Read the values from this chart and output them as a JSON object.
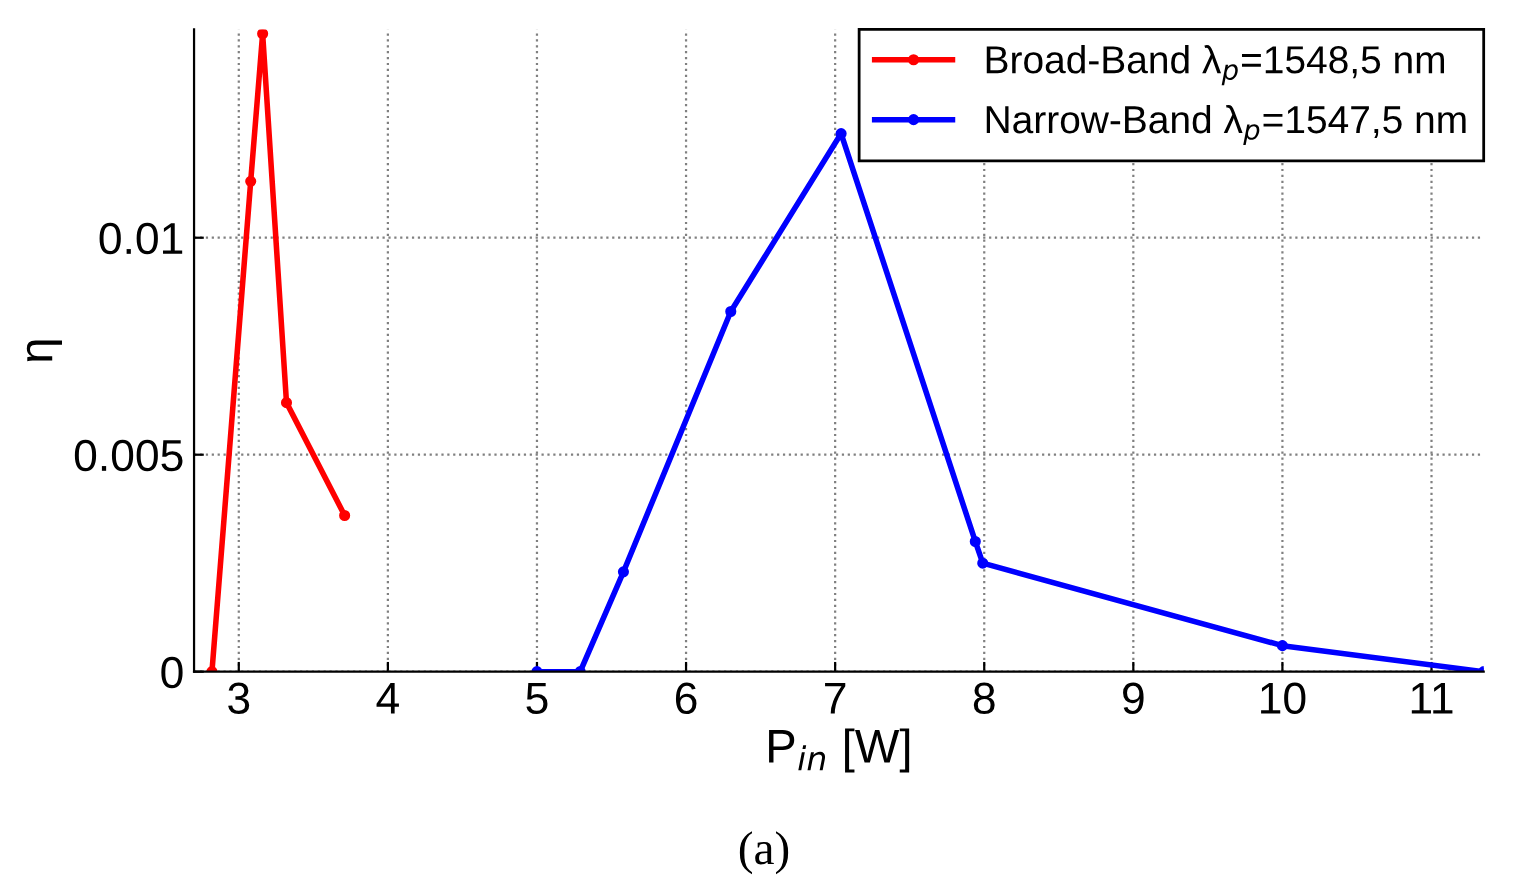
{
  "chart_data": {
    "type": "line",
    "xlabel": "P$_{in}$ [W]",
    "ylabel": "η",
    "annotations": [
      "(a)"
    ],
    "series": [
      {
        "name": "Broad-Band λ$_{p}$=1548,5 nm",
        "color": "#ff0000",
        "x": [
          2.82,
          3.08,
          3.16,
          3.32,
          3.71
        ],
        "values": [
          0,
          0.0113,
          0.0147,
          0.0062,
          0.0036
        ]
      },
      {
        "name": "Narrow-Band λ$_{p}$=1547,5 nm",
        "color": "#0000ff",
        "x": [
          5.0,
          5.29,
          5.58,
          6.3,
          7.04,
          7.94,
          7.99,
          10.0,
          11.35
        ],
        "values": [
          0,
          0,
          0.0023,
          0.0083,
          0.0124,
          0.003,
          0.0025,
          0.0006,
          0
        ]
      }
    ],
    "xlim": [
      2.7,
      11.35
    ],
    "ylim": [
      0,
      0.0148
    ],
    "xticks": [
      3,
      4,
      5,
      6,
      7,
      8,
      9,
      10,
      11
    ],
    "yticks": [
      0,
      0.005,
      0.01
    ],
    "grid": true,
    "legend": "top right",
    "marker": "circle",
    "line_style": "solid"
  }
}
